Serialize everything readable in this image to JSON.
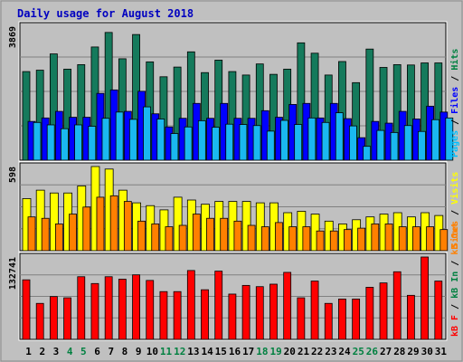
{
  "chart_data": {
    "type": "bar",
    "title": "Daily usage for August 2018",
    "days": [
      "1",
      "2",
      "3",
      "4",
      "5",
      "6",
      "7",
      "8",
      "9",
      "10",
      "11",
      "12",
      "13",
      "14",
      "15",
      "16",
      "17",
      "18",
      "19",
      "20",
      "21",
      "22",
      "23",
      "24",
      "25",
      "26",
      "27",
      "28",
      "29",
      "30",
      "31"
    ],
    "weekend_days": [
      "4",
      "5",
      "11",
      "12",
      "18",
      "19",
      "25",
      "26"
    ],
    "panels": [
      {
        "id": "hits-files-pages",
        "scale_label": "3869",
        "ylim": [
          0,
          3869
        ],
        "right_label_parts": [
          {
            "text": "Pages",
            "color": "#00c0ff"
          },
          {
            "text": " / ",
            "color": "#000000"
          },
          {
            "text": "Files",
            "color": "#0000ff"
          },
          {
            "text": " / ",
            "color": "#000000"
          },
          {
            "text": "Hits",
            "color": "#008040"
          }
        ],
        "series": [
          {
            "name": "Hits",
            "color": "#157a5c",
            "values": [
              2560,
              2600,
              3070,
              2630,
              2760,
              3270,
              3690,
              2930,
              3630,
              2840,
              2410,
              2690,
              3130,
              2530,
              2890,
              2560,
              2460,
              2780,
              2480,
              2630,
              3390,
              3090,
              2460,
              2850,
              2240,
              3210,
              2680,
              2760,
              2750,
              2810,
              2810
            ]
          },
          {
            "name": "Files",
            "color": "#0000ff",
            "values": [
              1120,
              1220,
              1410,
              1240,
              1240,
              1930,
              2030,
              1410,
              1990,
              1340,
              960,
              1210,
              1640,
              1210,
              1640,
              1210,
              1210,
              1430,
              1240,
              1610,
              1640,
              1220,
              1640,
              1200,
              650,
              1120,
              1070,
              1410,
              1190,
              1560,
              1390
            ]
          },
          {
            "name": "Pages",
            "color": "#1ab8f0",
            "values": [
              1090,
              1020,
              910,
              1020,
              980,
              1210,
              1390,
              1180,
              1540,
              1190,
              770,
              960,
              1140,
              950,
              1040,
              1030,
              1000,
              840,
              1150,
              1030,
              1220,
              1090,
              1370,
              990,
              400,
              860,
              800,
              1000,
              830,
              1170,
              1220
            ]
          }
        ]
      },
      {
        "id": "visits-sites",
        "scale_label": "598",
        "ylim": [
          0,
          598
        ],
        "right_label_parts": [
          {
            "text": "Sites",
            "color": "#ff8000"
          },
          {
            "text": " / ",
            "color": "#000000"
          },
          {
            "text": "Visits",
            "color": "#ffff00"
          }
        ],
        "series": [
          {
            "name": "Visits",
            "color": "#ffff00",
            "values": [
              370,
              430,
              410,
              410,
              460,
              598,
              580,
              430,
              340,
              320,
              290,
              380,
              360,
              330,
              350,
              350,
              350,
              340,
              340,
              270,
              280,
              260,
              210,
              190,
              220,
              240,
              260,
              270,
              240,
              270,
              250
            ]
          },
          {
            "name": "Sites",
            "color": "#ff8000",
            "values": [
              240,
              230,
              190,
              260,
              310,
              380,
              390,
              350,
              210,
              190,
              170,
              180,
              260,
              230,
              230,
              210,
              180,
              170,
              200,
              170,
              170,
              140,
              140,
              150,
              160,
              190,
              190,
              170,
              170,
              170,
              150
            ]
          }
        ]
      },
      {
        "id": "kbytes",
        "scale_label": "132741",
        "ylim": [
          0,
          132741
        ],
        "right_label_parts": [
          {
            "text": "kB F",
            "color": "#ff0000"
          },
          {
            "text": " / ",
            "color": "#000000"
          },
          {
            "text": "kB In",
            "color": "#008040"
          },
          {
            "text": " / ",
            "color": "#000000"
          },
          {
            "text": "kB Out",
            "color": "#ff8000"
          }
        ],
        "series": [
          {
            "name": "kB F",
            "color": "#ff0000",
            "values": [
              96000,
              58000,
              69000,
              67000,
              101000,
              90000,
              101000,
              97000,
              104000,
              95000,
              77000,
              77000,
              111000,
              80000,
              110000,
              73000,
              87000,
              85000,
              89000,
              108000,
              67000,
              94000,
              58000,
              65000,
              65000,
              84000,
              91000,
              109000,
              71000,
              132741,
              94000
            ]
          }
        ]
      }
    ]
  }
}
